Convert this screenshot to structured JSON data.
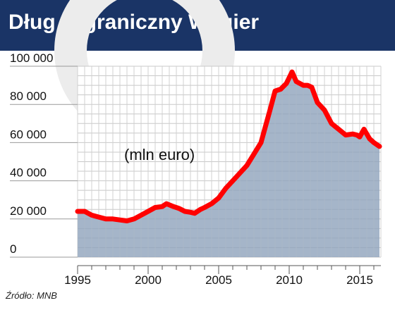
{
  "title": "Dług zagraniczny Węgier",
  "source": "Źródło: MNB",
  "chart_data": {
    "type": "area",
    "annotation": "(mln euro)",
    "xlabel": "",
    "ylabel": "",
    "xlim": [
      1995,
      2016.5
    ],
    "ylim": [
      0,
      100000
    ],
    "x_ticks": [
      1995,
      2000,
      2005,
      2010,
      2015
    ],
    "y_ticks": [
      0,
      20000,
      40000,
      60000,
      80000,
      100000
    ],
    "y_tick_labels": [
      "0",
      "20 000",
      "40 000",
      "60 000",
      "80 000",
      "100 000"
    ],
    "grid": true,
    "legend": "none",
    "colors": {
      "area": "#8fa3bb",
      "line": "#ff0000",
      "header": "#1a3466"
    },
    "series": [
      {
        "values_x": [
          1995,
          1995.5,
          1996,
          1996.5,
          1997,
          1997.5,
          1998,
          1998.5,
          1999,
          1999.5,
          2000,
          2000.5,
          2001,
          2001.3,
          2001.8,
          2002.2,
          2002.6,
          2003,
          2003.3,
          2003.7,
          2004,
          2004.5,
          2005,
          2005.5,
          2006,
          2006.5,
          2007,
          2007.5,
          2008,
          2008.3,
          2008.6,
          2009,
          2009.4,
          2009.8,
          2010,
          2010.2,
          2010.5,
          2011,
          2011.3,
          2011.6,
          2012,
          2012.5,
          2013,
          2013.5,
          2014,
          2014.5,
          2014.8,
          2015,
          2015.3,
          2015.7,
          2016,
          2016.4
        ],
        "values_y": [
          24000,
          24000,
          22000,
          21000,
          20000,
          20000,
          19500,
          19000,
          20000,
          22000,
          24000,
          26000,
          26500,
          28000,
          26500,
          25500,
          24000,
          23500,
          23000,
          25000,
          26000,
          28000,
          31000,
          36000,
          40000,
          44000,
          48000,
          54000,
          60000,
          68000,
          76000,
          87000,
          88000,
          91000,
          94000,
          97000,
          92000,
          90000,
          90000,
          89000,
          81000,
          77000,
          70000,
          67000,
          64000,
          64500,
          64000,
          63000,
          67000,
          62000,
          60000,
          58000
        ]
      }
    ]
  }
}
